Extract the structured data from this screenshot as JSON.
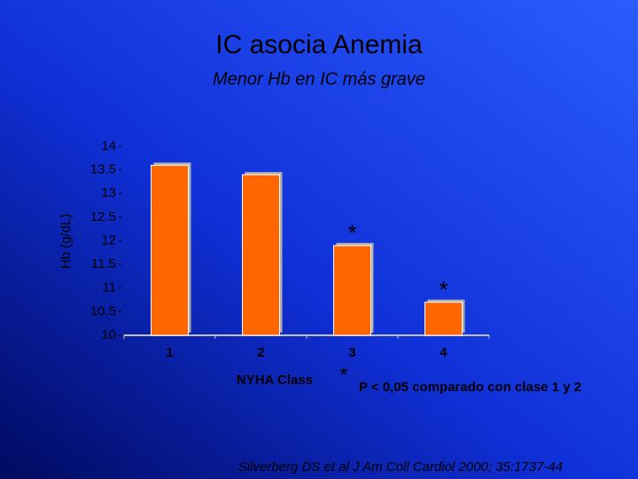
{
  "chart_data": {
    "type": "bar",
    "title": "IC  asocia  Anemia",
    "subtitle": "Menor Hb en IC más grave",
    "y_label": "Hb (g/dL)",
    "x_label": "NYHA   Class",
    "categories": [
      "1",
      "2",
      "3",
      "4"
    ],
    "values": [
      13.6,
      13.4,
      11.9,
      10.7
    ],
    "color": "#ff6600",
    "ylim": [
      10,
      14
    ],
    "yticks": [
      10,
      10.5,
      11,
      11.5,
      12,
      12.5,
      13,
      13.5,
      14
    ],
    "annotations": [
      "*",
      "*"
    ],
    "footnote": {
      "marker": "*",
      "text": "P < 0,05 comparado con clase 1 y 2"
    },
    "source": "Silverberg DS et al J Am Coll Cardiol 2000; 35:1737-44"
  }
}
